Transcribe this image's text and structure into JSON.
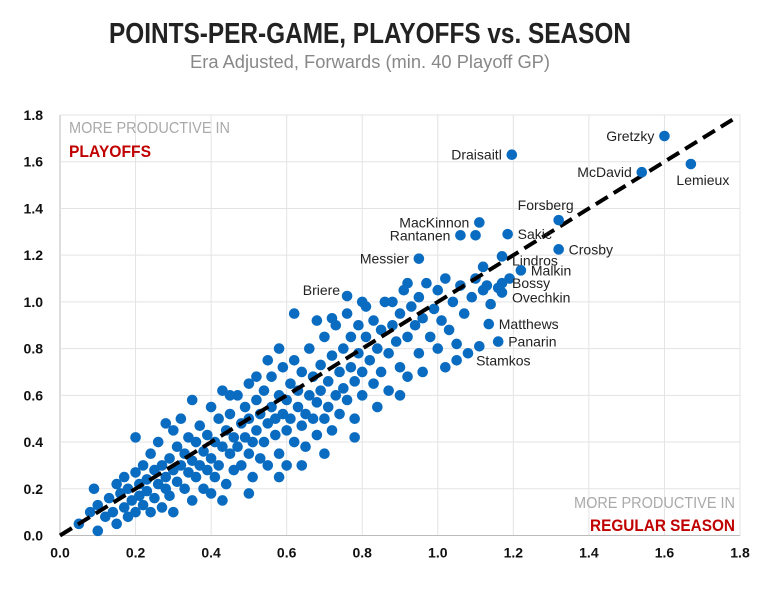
{
  "chart_data": {
    "type": "scatter",
    "title": "POINTS-PER-GAME, PLAYOFFS vs. SEASON",
    "subtitle": "Era Adjusted, Forwards (min. 40 Playoff GP)",
    "xlabel": "",
    "ylabel": "",
    "xlim": [
      0,
      1.8
    ],
    "ylim": [
      0,
      1.8
    ],
    "x_ticks": [
      "0.0",
      "0.2",
      "0.4",
      "0.6",
      "0.8",
      "1.0",
      "1.2",
      "1.4",
      "1.6",
      "1.8"
    ],
    "y_ticks": [
      "0.0",
      "0.2",
      "0.4",
      "0.6",
      "0.8",
      "1.0",
      "1.2",
      "1.4",
      "1.6",
      "1.8"
    ],
    "grid": true,
    "point_color": "#0a6cc0",
    "reference_line": {
      "style": "dashed",
      "color": "#000000",
      "from": [
        0,
        0
      ],
      "to": [
        1.78,
        1.78
      ]
    },
    "annotations": {
      "top_left": {
        "line1": "MORE PRODUCTIVE IN",
        "line2": "PLAYOFFS",
        "accent": "#c00000"
      },
      "bottom_right": {
        "line1": "MORE PRODUCTIVE IN",
        "line2": "REGULAR SEASON",
        "accent": "#c00000"
      }
    },
    "labeled_points": [
      {
        "name": "Gretzky",
        "x": 1.6,
        "y": 1.71,
        "side": "left"
      },
      {
        "name": "Draisaitl",
        "x": 1.196,
        "y": 1.63,
        "side": "left"
      },
      {
        "name": "McDavid",
        "x": 1.54,
        "y": 1.555,
        "side": "left"
      },
      {
        "name": "Lemieux",
        "x": 1.67,
        "y": 1.59,
        "side": "below"
      },
      {
        "name": "Forsberg",
        "x": 1.32,
        "y": 1.35,
        "side": "above"
      },
      {
        "name": "MacKinnon",
        "x": 1.11,
        "y": 1.34,
        "side": "left"
      },
      {
        "name": "Rantanen",
        "x": 1.06,
        "y": 1.285,
        "side": "left"
      },
      {
        "name": "",
        "x": 1.1,
        "y": 1.285,
        "side": "none"
      },
      {
        "name": "Sakic",
        "x": 1.185,
        "y": 1.29,
        "side": "right"
      },
      {
        "name": "Crosby",
        "x": 1.32,
        "y": 1.225,
        "side": "right"
      },
      {
        "name": "Messier",
        "x": 0.95,
        "y": 1.185,
        "side": "left"
      },
      {
        "name": "Lindros",
        "x": 1.17,
        "y": 1.195,
        "side": "right"
      },
      {
        "name": "Malkin",
        "x": 1.22,
        "y": 1.135,
        "side": "right"
      },
      {
        "name": "Bossy",
        "x": 1.17,
        "y": 1.08,
        "side": "right"
      },
      {
        "name": "Ovechkin",
        "x": 1.17,
        "y": 1.04,
        "side": "right"
      },
      {
        "name": "Briere",
        "x": 0.76,
        "y": 1.025,
        "side": "aboveleft"
      },
      {
        "name": "Matthews",
        "x": 1.135,
        "y": 0.905,
        "side": "right"
      },
      {
        "name": "Panarin",
        "x": 1.16,
        "y": 0.83,
        "side": "right"
      },
      {
        "name": "Stamkos",
        "x": 1.11,
        "y": 0.81,
        "side": "below"
      }
    ],
    "points": [
      [
        0.05,
        0.05
      ],
      [
        0.08,
        0.1
      ],
      [
        0.1,
        0.02
      ],
      [
        0.1,
        0.13
      ],
      [
        0.09,
        0.2
      ],
      [
        0.12,
        0.08
      ],
      [
        0.13,
        0.16
      ],
      [
        0.14,
        0.1
      ],
      [
        0.15,
        0.22
      ],
      [
        0.15,
        0.05
      ],
      [
        0.16,
        0.18
      ],
      [
        0.17,
        0.12
      ],
      [
        0.17,
        0.25
      ],
      [
        0.18,
        0.2
      ],
      [
        0.18,
        0.08
      ],
      [
        0.19,
        0.15
      ],
      [
        0.2,
        0.27
      ],
      [
        0.2,
        0.1
      ],
      [
        0.21,
        0.22
      ],
      [
        0.21,
        0.17
      ],
      [
        0.22,
        0.3
      ],
      [
        0.22,
        0.13
      ],
      [
        0.23,
        0.24
      ],
      [
        0.23,
        0.19
      ],
      [
        0.24,
        0.35
      ],
      [
        0.24,
        0.1
      ],
      [
        0.25,
        0.28
      ],
      [
        0.25,
        0.16
      ],
      [
        0.26,
        0.22
      ],
      [
        0.26,
        0.4
      ],
      [
        0.27,
        0.3
      ],
      [
        0.27,
        0.12
      ],
      [
        0.28,
        0.25
      ],
      [
        0.28,
        0.2
      ],
      [
        0.29,
        0.33
      ],
      [
        0.29,
        0.17
      ],
      [
        0.3,
        0.28
      ],
      [
        0.3,
        0.45
      ],
      [
        0.3,
        0.1
      ],
      [
        0.31,
        0.23
      ],
      [
        0.31,
        0.38
      ],
      [
        0.32,
        0.5
      ],
      [
        0.32,
        0.3
      ],
      [
        0.33,
        0.2
      ],
      [
        0.33,
        0.35
      ],
      [
        0.34,
        0.27
      ],
      [
        0.34,
        0.42
      ],
      [
        0.35,
        0.15
      ],
      [
        0.35,
        0.32
      ],
      [
        0.36,
        0.4
      ],
      [
        0.36,
        0.25
      ],
      [
        0.37,
        0.3
      ],
      [
        0.37,
        0.47
      ],
      [
        0.38,
        0.2
      ],
      [
        0.38,
        0.36
      ],
      [
        0.39,
        0.43
      ],
      [
        0.39,
        0.28
      ],
      [
        0.4,
        0.55
      ],
      [
        0.4,
        0.33
      ],
      [
        0.4,
        0.18
      ],
      [
        0.41,
        0.4
      ],
      [
        0.41,
        0.25
      ],
      [
        0.42,
        0.5
      ],
      [
        0.42,
        0.3
      ],
      [
        0.43,
        0.62
      ],
      [
        0.43,
        0.38
      ],
      [
        0.44,
        0.45
      ],
      [
        0.44,
        0.22
      ],
      [
        0.45,
        0.35
      ],
      [
        0.45,
        0.52
      ],
      [
        0.46,
        0.28
      ],
      [
        0.46,
        0.42
      ],
      [
        0.47,
        0.6
      ],
      [
        0.47,
        0.38
      ],
      [
        0.48,
        0.48
      ],
      [
        0.48,
        0.3
      ],
      [
        0.49,
        0.55
      ],
      [
        0.49,
        0.42
      ],
      [
        0.5,
        0.35
      ],
      [
        0.5,
        0.65
      ],
      [
        0.5,
        0.5
      ],
      [
        0.51,
        0.4
      ],
      [
        0.51,
        0.25
      ],
      [
        0.52,
        0.58
      ],
      [
        0.52,
        0.45
      ],
      [
        0.53,
        0.33
      ],
      [
        0.53,
        0.52
      ],
      [
        0.54,
        0.62
      ],
      [
        0.54,
        0.4
      ],
      [
        0.55,
        0.48
      ],
      [
        0.55,
        0.3
      ],
      [
        0.56,
        0.55
      ],
      [
        0.56,
        0.68
      ],
      [
        0.57,
        0.43
      ],
      [
        0.57,
        0.5
      ],
      [
        0.58,
        0.6
      ],
      [
        0.58,
        0.35
      ],
      [
        0.59,
        0.52
      ],
      [
        0.59,
        0.72
      ],
      [
        0.6,
        0.45
      ],
      [
        0.6,
        0.58
      ],
      [
        0.6,
        0.3
      ],
      [
        0.61,
        0.65
      ],
      [
        0.61,
        0.5
      ],
      [
        0.62,
        0.4
      ],
      [
        0.62,
        0.75
      ],
      [
        0.63,
        0.55
      ],
      [
        0.63,
        0.62
      ],
      [
        0.64,
        0.47
      ],
      [
        0.64,
        0.7
      ],
      [
        0.65,
        0.52
      ],
      [
        0.65,
        0.38
      ],
      [
        0.66,
        0.6
      ],
      [
        0.66,
        0.8
      ],
      [
        0.67,
        0.5
      ],
      [
        0.67,
        0.68
      ],
      [
        0.68,
        0.57
      ],
      [
        0.68,
        0.43
      ],
      [
        0.69,
        0.73
      ],
      [
        0.69,
        0.62
      ],
      [
        0.7,
        0.5
      ],
      [
        0.7,
        0.85
      ],
      [
        0.71,
        0.66
      ],
      [
        0.71,
        0.55
      ],
      [
        0.72,
        0.77
      ],
      [
        0.72,
        0.45
      ],
      [
        0.73,
        0.6
      ],
      [
        0.73,
        0.9
      ],
      [
        0.74,
        0.7
      ],
      [
        0.74,
        0.52
      ],
      [
        0.75,
        0.8
      ],
      [
        0.75,
        0.63
      ],
      [
        0.76,
        0.58
      ],
      [
        0.76,
        0.95
      ],
      [
        0.77,
        0.72
      ],
      [
        0.77,
        0.85
      ],
      [
        0.78,
        0.66
      ],
      [
        0.78,
        0.5
      ],
      [
        0.79,
        0.78
      ],
      [
        0.79,
        0.9
      ],
      [
        0.8,
        0.7
      ],
      [
        0.8,
        0.6
      ],
      [
        0.81,
        0.85
      ],
      [
        0.81,
        0.98
      ],
      [
        0.82,
        0.75
      ],
      [
        0.83,
        0.65
      ],
      [
        0.83,
        0.92
      ],
      [
        0.84,
        0.8
      ],
      [
        0.85,
        0.88
      ],
      [
        0.85,
        0.7
      ],
      [
        0.86,
        1.0
      ],
      [
        0.87,
        0.78
      ],
      [
        0.87,
        0.62
      ],
      [
        0.88,
        0.9
      ],
      [
        0.89,
        0.83
      ],
      [
        0.9,
        0.95
      ],
      [
        0.9,
        0.72
      ],
      [
        0.91,
        1.05
      ],
      [
        0.92,
        0.85
      ],
      [
        0.92,
        0.68
      ],
      [
        0.93,
        0.98
      ],
      [
        0.94,
        0.9
      ],
      [
        0.95,
        1.02
      ],
      [
        0.95,
        0.78
      ],
      [
        0.96,
        0.93
      ],
      [
        0.97,
        1.08
      ],
      [
        0.98,
        0.85
      ],
      [
        0.99,
        0.97
      ],
      [
        1.0,
        0.8
      ],
      [
        1.0,
        1.05
      ],
      [
        1.01,
        0.92
      ],
      [
        1.02,
        1.1
      ],
      [
        1.03,
        0.88
      ],
      [
        1.04,
        1.0
      ],
      [
        1.05,
        0.82
      ],
      [
        1.06,
        1.07
      ],
      [
        1.07,
        0.95
      ],
      [
        1.08,
        0.78
      ],
      [
        1.1,
        1.1
      ],
      [
        1.12,
        1.05
      ],
      [
        1.14,
        0.99
      ],
      [
        1.05,
        0.75
      ],
      [
        0.28,
        0.48
      ],
      [
        0.2,
        0.42
      ],
      [
        0.62,
        0.95
      ],
      [
        0.68,
        0.92
      ],
      [
        0.55,
        0.75
      ],
      [
        0.35,
        0.58
      ],
      [
        0.45,
        0.6
      ],
      [
        0.52,
        0.68
      ],
      [
        0.58,
        0.8
      ],
      [
        0.72,
        0.93
      ],
      [
        0.8,
        1.0
      ],
      [
        0.88,
        1.0
      ],
      [
        0.92,
        1.08
      ],
      [
        1.09,
        1.02
      ],
      [
        1.12,
        1.15
      ],
      [
        0.43,
        0.15
      ],
      [
        0.5,
        0.18
      ],
      [
        0.58,
        0.25
      ],
      [
        0.64,
        0.3
      ],
      [
        0.7,
        0.35
      ],
      [
        0.78,
        0.42
      ],
      [
        0.84,
        0.55
      ],
      [
        0.9,
        0.6
      ],
      [
        0.96,
        0.7
      ],
      [
        1.02,
        0.72
      ],
      [
        1.13,
        1.07
      ],
      [
        1.16,
        1.06
      ],
      [
        1.19,
        1.1
      ]
    ]
  }
}
